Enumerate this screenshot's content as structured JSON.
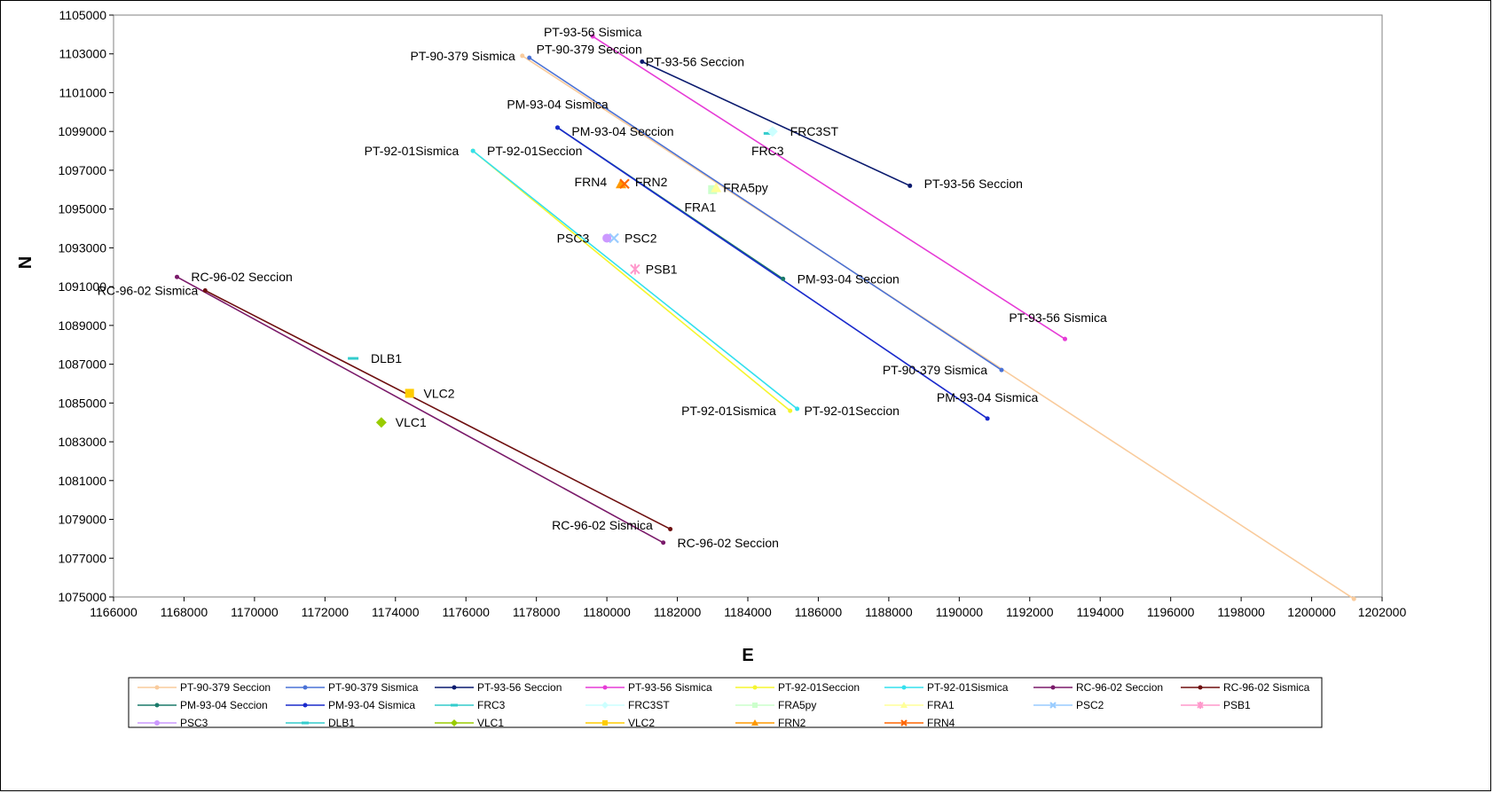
{
  "chart_data": {
    "type": "scatter",
    "xlabel": "E",
    "ylabel": "N",
    "xlim": [
      1166000,
      1202000
    ],
    "ylim": [
      1075000,
      1105000
    ],
    "x_ticks": [
      1166000,
      1168000,
      1170000,
      1172000,
      1174000,
      1176000,
      1178000,
      1180000,
      1182000,
      1184000,
      1186000,
      1188000,
      1190000,
      1192000,
      1194000,
      1196000,
      1198000,
      1200000,
      1202000
    ],
    "y_ticks": [
      1075000,
      1077000,
      1079000,
      1081000,
      1083000,
      1085000,
      1087000,
      1089000,
      1091000,
      1093000,
      1095000,
      1097000,
      1099000,
      1101000,
      1103000,
      1105000
    ],
    "grid": false,
    "legend_position": "bottom",
    "series": [
      {
        "name": "PT-90-379 Seccion",
        "color": "#F9CB9C",
        "marker": "dot",
        "points": [
          [
            1177600,
            1102900
          ],
          [
            1201200,
            1074900
          ]
        ]
      },
      {
        "name": "PT-90-379 Sismica",
        "color": "#4A72D6",
        "marker": "dot",
        "points": [
          [
            1177800,
            1102800
          ],
          [
            1191200,
            1086700
          ]
        ]
      },
      {
        "name": "PT-93-56 Seccion",
        "color": "#0A1A6E",
        "marker": "dot",
        "points": [
          [
            1181000,
            1102600
          ],
          [
            1188600,
            1096200
          ]
        ]
      },
      {
        "name": "PT-93-56 Sismica",
        "color": "#E63BD6",
        "marker": "dot",
        "points": [
          [
            1179600,
            1103900
          ],
          [
            1193000,
            1088300
          ]
        ]
      },
      {
        "name": "PT-92-01Seccion",
        "color": "#F5F52E",
        "marker": "dot",
        "points": [
          [
            1176200,
            1098000
          ],
          [
            1185200,
            1084600
          ]
        ]
      },
      {
        "name": "PT-92-01Sismica",
        "color": "#33E0EE",
        "marker": "dot",
        "points": [
          [
            1176200,
            1098000
          ],
          [
            1185400,
            1084700
          ]
        ]
      },
      {
        "name": "RC-96-02 Seccion",
        "color": "#7A1A6A",
        "marker": "dot",
        "points": [
          [
            1167800,
            1091500
          ],
          [
            1181600,
            1077800
          ]
        ]
      },
      {
        "name": "RC-96-02 Sismica",
        "color": "#6E0F0F",
        "marker": "dot",
        "points": [
          [
            1168600,
            1090800
          ],
          [
            1181800,
            1078500
          ]
        ]
      },
      {
        "name": "PM-93-04 Seccion",
        "color": "#1A7A6A",
        "marker": "dot",
        "points": [
          [
            1178600,
            1099200
          ],
          [
            1185000,
            1091400
          ]
        ]
      },
      {
        "name": "PM-93-04 Sismica",
        "color": "#1A2ACC",
        "marker": "dot",
        "points": [
          [
            1178600,
            1099200
          ],
          [
            1190800,
            1084200
          ]
        ]
      },
      {
        "name": "FRC3",
        "color": "#33CCCC",
        "marker": "dash",
        "points": [
          [
            1184600,
            1098900
          ]
        ]
      },
      {
        "name": "FRC3ST",
        "color": "#CCFFFF",
        "marker": "diamond",
        "points": [
          [
            1184700,
            1099000
          ]
        ]
      },
      {
        "name": "FRA5py",
        "color": "#CCFFCC",
        "marker": "square",
        "points": [
          [
            1183000,
            1096000
          ]
        ]
      },
      {
        "name": "FRA1",
        "color": "#FFFF99",
        "marker": "triangle",
        "points": [
          [
            1183100,
            1096100
          ]
        ]
      },
      {
        "name": "PSC2",
        "color": "#99CCFF",
        "marker": "x",
        "points": [
          [
            1180200,
            1093500
          ]
        ]
      },
      {
        "name": "PSB1",
        "color": "#FF99CC",
        "marker": "star",
        "points": [
          [
            1180800,
            1091900
          ]
        ]
      },
      {
        "name": "PSC3",
        "color": "#CC99FF",
        "marker": "circle",
        "points": [
          [
            1180000,
            1093500
          ]
        ]
      },
      {
        "name": "DLB1",
        "color": "#33CCCC",
        "marker": "dash",
        "points": [
          [
            1172800,
            1087300
          ]
        ]
      },
      {
        "name": "VLC1",
        "color": "#99CC00",
        "marker": "diamond",
        "points": [
          [
            1173600,
            1084000
          ]
        ]
      },
      {
        "name": "VLC2",
        "color": "#FFCC00",
        "marker": "square",
        "points": [
          [
            1174400,
            1085500
          ]
        ]
      },
      {
        "name": "FRN2",
        "color": "#FF9900",
        "marker": "triangle",
        "points": [
          [
            1180400,
            1096300
          ]
        ]
      },
      {
        "name": "FRN4",
        "color": "#FF6600",
        "marker": "x",
        "points": [
          [
            1180500,
            1096300
          ]
        ]
      }
    ],
    "annotations": [
      {
        "text": "PT-93-56 Sismica",
        "x": 1179600,
        "y": 1103900,
        "anchor": "middle",
        "dy": 0
      },
      {
        "text": "PT-90-379 Sismica",
        "x": 1177400,
        "y": 1102900,
        "anchor": "end",
        "dy": 5
      },
      {
        "text": "PT-90-379 Seccion",
        "x": 1178000,
        "y": 1103000,
        "anchor": "start",
        "dy": 0
      },
      {
        "text": "PT-93-56 Seccion",
        "x": 1181100,
        "y": 1102600,
        "anchor": "start",
        "dy": 5
      },
      {
        "text": "PM-93-04 Sismica",
        "x": 1178600,
        "y": 1100400,
        "anchor": "middle",
        "dy": 5
      },
      {
        "text": "PM-93-04 Seccion",
        "x": 1179000,
        "y": 1099000,
        "anchor": "start",
        "dy": 5
      },
      {
        "text": "FRC3ST",
        "x": 1185200,
        "y": 1099000,
        "anchor": "start",
        "dy": 5
      },
      {
        "text": "FRC3",
        "x": 1184100,
        "y": 1098000,
        "anchor": "start",
        "dy": 5
      },
      {
        "text": "PT-92-01Sismica",
        "x": 1175800,
        "y": 1098000,
        "anchor": "end",
        "dy": 5
      },
      {
        "text": "PT-92-01Seccion",
        "x": 1176600,
        "y": 1098000,
        "anchor": "start",
        "dy": 5
      },
      {
        "text": "FRN4",
        "x": 1180000,
        "y": 1096400,
        "anchor": "end",
        "dy": 5
      },
      {
        "text": "FRN2",
        "x": 1180800,
        "y": 1096400,
        "anchor": "start",
        "dy": 5
      },
      {
        "text": "FRA5py",
        "x": 1183300,
        "y": 1096100,
        "anchor": "start",
        "dy": 5
      },
      {
        "text": "FRA1",
        "x": 1182200,
        "y": 1095100,
        "anchor": "start",
        "dy": 5
      },
      {
        "text": "PT-93-56 Seccion",
        "x": 1189000,
        "y": 1096300,
        "anchor": "start",
        "dy": 5
      },
      {
        "text": "PSC3",
        "x": 1179500,
        "y": 1093500,
        "anchor": "end",
        "dy": 5
      },
      {
        "text": "PSC2",
        "x": 1180500,
        "y": 1093500,
        "anchor": "start",
        "dy": 5
      },
      {
        "text": "PSB1",
        "x": 1181100,
        "y": 1091900,
        "anchor": "start",
        "dy": 5
      },
      {
        "text": "RC-96-02 Seccion",
        "x": 1168200,
        "y": 1091500,
        "anchor": "start",
        "dy": 5
      },
      {
        "text": "RC-96-02 Sismica",
        "x": 1168400,
        "y": 1090800,
        "anchor": "end",
        "dy": 5
      },
      {
        "text": "PM-93-04 Seccion",
        "x": 1185400,
        "y": 1091400,
        "anchor": "start",
        "dy": 5
      },
      {
        "text": "PT-93-56 Sismica",
        "x": 1192800,
        "y": 1089400,
        "anchor": "middle",
        "dy": 5
      },
      {
        "text": "DLB1",
        "x": 1173300,
        "y": 1087300,
        "anchor": "start",
        "dy": 5
      },
      {
        "text": "PT-90-379 Sismica",
        "x": 1190800,
        "y": 1086700,
        "anchor": "end",
        "dy": 5
      },
      {
        "text": "VLC2",
        "x": 1174800,
        "y": 1085500,
        "anchor": "start",
        "dy": 5
      },
      {
        "text": "PM-93-04 Sismica",
        "x": 1190800,
        "y": 1085300,
        "anchor": "middle",
        "dy": 5
      },
      {
        "text": "PT-92-01Sismica",
        "x": 1184800,
        "y": 1084600,
        "anchor": "end",
        "dy": 5
      },
      {
        "text": "PT-92-01Seccion",
        "x": 1185600,
        "y": 1084600,
        "anchor": "start",
        "dy": 5
      },
      {
        "text": "VLC1",
        "x": 1174000,
        "y": 1084000,
        "anchor": "start",
        "dy": 5
      },
      {
        "text": "RC-96-02 Sismica",
        "x": 1181300,
        "y": 1078700,
        "anchor": "end",
        "dy": 5
      },
      {
        "text": "RC-96-02 Seccion",
        "x": 1182000,
        "y": 1077800,
        "anchor": "start",
        "dy": 5
      }
    ]
  }
}
